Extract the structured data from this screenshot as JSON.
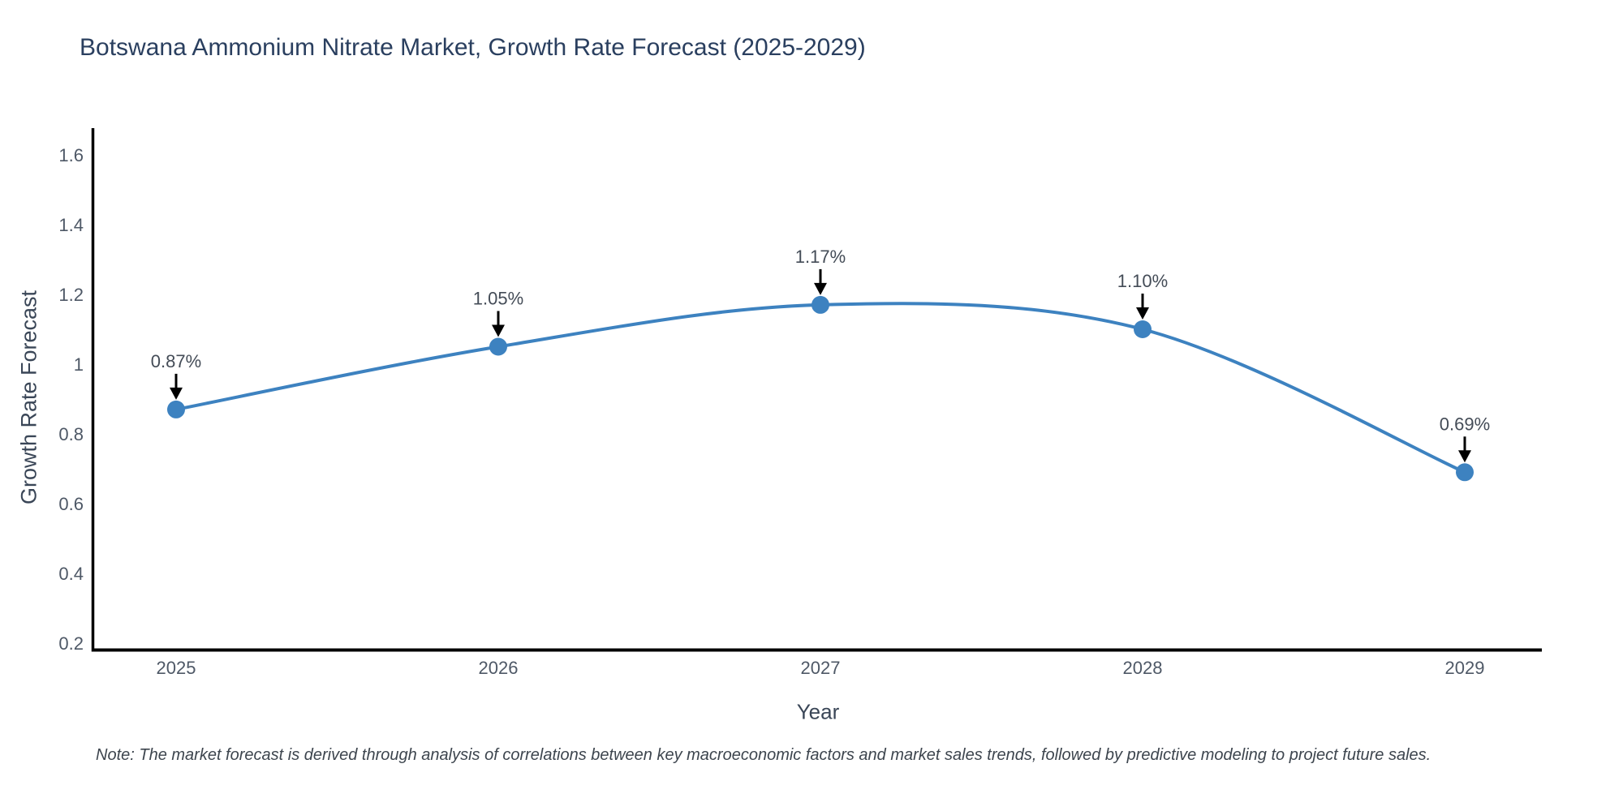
{
  "note": "Note: The market forecast is derived through analysis of correlations between key macroeconomic factors and market sales trends, followed by predictive modeling to project future sales.",
  "chart_data": {
    "type": "line",
    "title": "Botswana Ammonium Nitrate Market, Growth Rate Forecast (2025-2029)",
    "xlabel": "Year",
    "ylabel": "Growth Rate Forecast",
    "categories": [
      "2025",
      "2026",
      "2027",
      "2028",
      "2029"
    ],
    "values": [
      0.87,
      1.05,
      1.17,
      1.1,
      0.69
    ],
    "point_labels": [
      "0.87%",
      "1.05%",
      "1.17%",
      "1.10%",
      "0.69%"
    ],
    "yticks": [
      0.2,
      0.4,
      0.6,
      0.8,
      1.0,
      1.2,
      1.4,
      1.6
    ],
    "ytick_labels": [
      "0.2",
      "0.4",
      "0.6",
      "0.8",
      "1",
      "1.2",
      "1.4",
      "1.6"
    ],
    "ylim": [
      0.2,
      1.6
    ],
    "grid": false,
    "legend_position": "none",
    "line_color": "#3d82c0",
    "marker_color": "#3d82c0",
    "annotation_arrow_color": "#000000",
    "axis_color": "#000000",
    "title_color": "#2a3f5f"
  }
}
